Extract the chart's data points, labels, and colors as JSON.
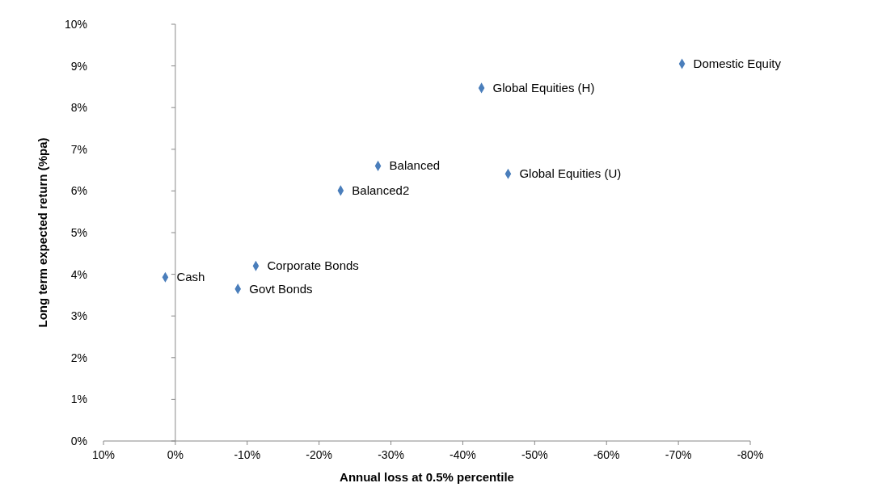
{
  "chart_data": {
    "type": "scatter",
    "xlabel": "Annual loss at 0.5% percentile",
    "ylabel": "Long term expected return (%pa)",
    "x": [
      1.4,
      -8.7,
      -11.2,
      -23.0,
      -28.2,
      -42.6,
      -46.3,
      -70.5
    ],
    "series": [
      {
        "color": "#4a7ebb",
        "values": [
          3.93,
          3.65,
          4.2,
          6.01,
          6.6,
          8.47,
          6.41,
          9.05
        ]
      }
    ],
    "marker": "diamond",
    "xlim": [
      10,
      -80
    ],
    "xticks": [
      {
        "value": 10,
        "label": "10%"
      },
      {
        "value": 0,
        "label": "0%"
      },
      {
        "value": -10,
        "label": "-10%"
      },
      {
        "value": -20,
        "label": "-20%"
      },
      {
        "value": -30,
        "label": "-30%"
      },
      {
        "value": -40,
        "label": "-40%"
      },
      {
        "value": -50,
        "label": "-50%"
      },
      {
        "value": -60,
        "label": "-60%"
      },
      {
        "value": -70,
        "label": "-70%"
      },
      {
        "value": -80,
        "label": "-80%"
      }
    ],
    "ylim": [
      0,
      10
    ],
    "yticks": [
      {
        "value": 0,
        "label": "0%"
      },
      {
        "value": 1,
        "label": "1%"
      },
      {
        "value": 2,
        "label": "2%"
      },
      {
        "value": 3,
        "label": "3%"
      },
      {
        "value": 4,
        "label": "4%"
      },
      {
        "value": 5,
        "label": "5%"
      },
      {
        "value": 6,
        "label": "6%"
      },
      {
        "value": 7,
        "label": "7%"
      },
      {
        "value": 8,
        "label": "8%"
      },
      {
        "value": 9,
        "label": "9%"
      },
      {
        "value": 10,
        "label": "10%"
      }
    ],
    "annotations": [
      {
        "text": "Cash",
        "x": 1.4,
        "y": 3.93
      },
      {
        "text": "Govt Bonds",
        "x": -8.7,
        "y": 3.65
      },
      {
        "text": "Corporate Bonds",
        "x": -11.2,
        "y": 4.2
      },
      {
        "text": "Balanced2",
        "x": -23.0,
        "y": 6.01
      },
      {
        "text": "Balanced",
        "x": -28.2,
        "y": 6.6
      },
      {
        "text": "Global Equities (H)",
        "x": -42.6,
        "y": 8.47
      },
      {
        "text": "Global Equities (U)",
        "x": -46.3,
        "y": 6.41
      },
      {
        "text": "Domestic Equity",
        "x": -70.5,
        "y": 9.05
      }
    ]
  }
}
